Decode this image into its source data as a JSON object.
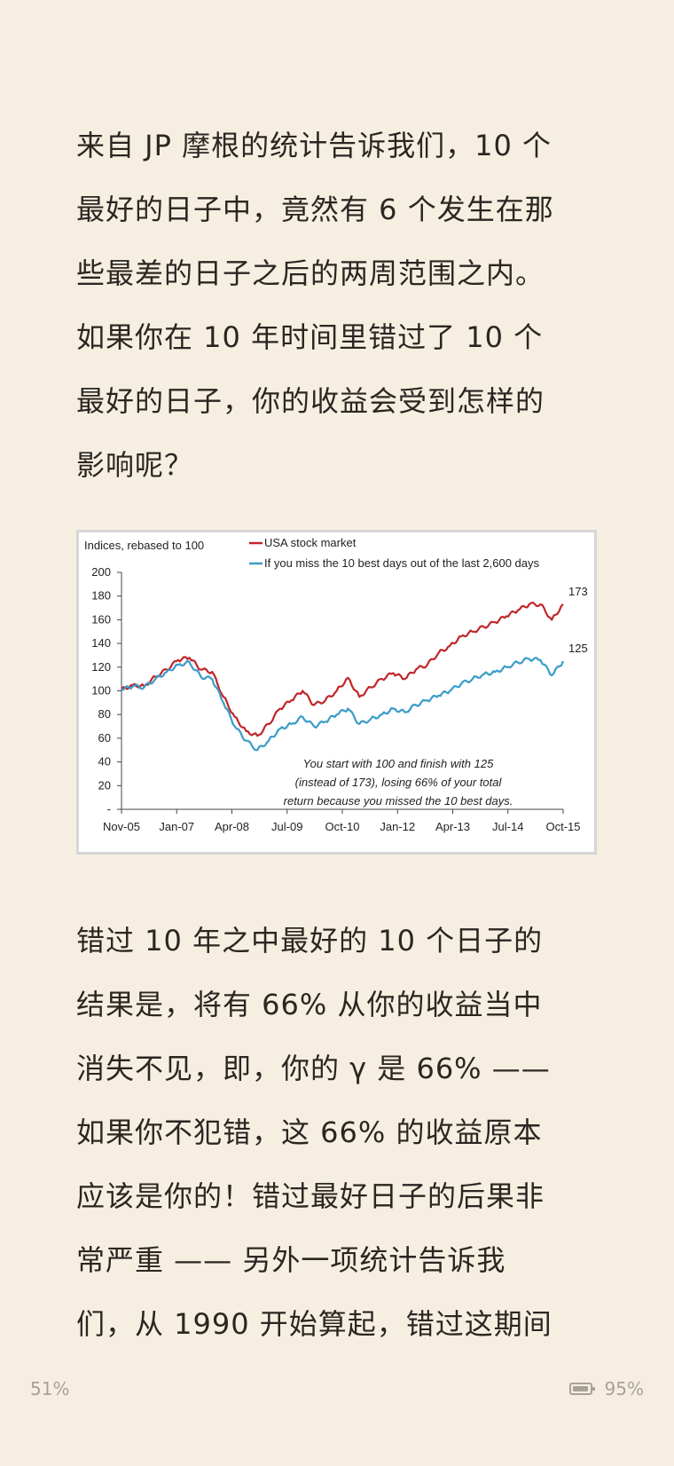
{
  "article": {
    "para1": [
      "来自 JP 摩根的统计告诉我们，10 个",
      "最好的日子中，竟然有 6 个发生在那",
      "些最差的日子之后的两周范围之内。",
      "如果你在 10 年时间里错过了 10 个",
      "最好的日子，你的收益会受到怎样的",
      "影响呢？"
    ],
    "para2": [
      "错过 10 年之中最好的 10 个日子的",
      "结果是，将有 66% 从你的收益当中",
      "消失不见，即，你的 γ 是 66% ——",
      "如果你不犯错，这 66% 的收益原本",
      "应该是你的！错过最好日子的后果非",
      "常严重 —— 另外一项统计告诉我",
      "们，从 1990 开始算起，错过这期间"
    ]
  },
  "chart_data": {
    "type": "line",
    "ylabel": "Indices, rebased to 100",
    "ylim": [
      0,
      200
    ],
    "yticks": [
      "-",
      "20",
      "40",
      "60",
      "80",
      "100",
      "120",
      "140",
      "160",
      "180",
      "200"
    ],
    "xticks": [
      "Nov-05",
      "Jan-07",
      "Apr-08",
      "Jul-09",
      "Oct-10",
      "Jan-12",
      "Apr-13",
      "Jul-14",
      "Oct-15"
    ],
    "x": [
      "Nov-05",
      "Mar-06",
      "Jul-06",
      "Nov-06",
      "Mar-07",
      "Jul-07",
      "Oct-07",
      "Feb-08",
      "Jun-08",
      "Sep-08",
      "Oct-08",
      "Jan-09",
      "Mar-09",
      "Jun-09",
      "Sep-09",
      "Jan-10",
      "Apr-10",
      "Jul-10",
      "Oct-10",
      "Jan-11",
      "Apr-11",
      "Aug-11",
      "Oct-11",
      "Jan-12",
      "Apr-12",
      "Jul-12",
      "Oct-12",
      "Jan-13",
      "Apr-13",
      "Jul-13",
      "Oct-13",
      "Jan-14",
      "Apr-14",
      "Jul-14",
      "Oct-14",
      "Jan-15",
      "May-15",
      "Aug-15",
      "Sep-15",
      "Oct-15"
    ],
    "series": [
      {
        "name": "USA stock market",
        "color": "#c0262a",
        "values": [
          101,
          105,
          104,
          112,
          118,
          126,
          128,
          118,
          116,
          95,
          78,
          66,
          62,
          72,
          85,
          92,
          100,
          88,
          92,
          100,
          111,
          95,
          103,
          110,
          115,
          110,
          118,
          122,
          132,
          138,
          146,
          150,
          154,
          158,
          163,
          168,
          173,
          173,
          160,
          173
        ],
        "end_label": "173"
      },
      {
        "name": "If you miss the 10 best days out of the last 2,600 days",
        "color": "#3a9cc8",
        "values": [
          101,
          104,
          103,
          110,
          116,
          122,
          124,
          112,
          110,
          90,
          70,
          58,
          50,
          58,
          68,
          72,
          78,
          70,
          74,
          80,
          85,
          72,
          76,
          80,
          85,
          82,
          88,
          92,
          96,
          100,
          106,
          110,
          114,
          116,
          120,
          124,
          127,
          126,
          113,
          125
        ],
        "end_label": "125"
      }
    ],
    "annotation": [
      "You start with 100 and finish with 125",
      "(instead of 173), losing 66% of your total",
      "return because you missed the 10 best days."
    ],
    "legend_placement": "top",
    "grid": false
  },
  "footer": {
    "progress": "51%",
    "battery": "95%",
    "battery_icon": "battery-icon"
  }
}
